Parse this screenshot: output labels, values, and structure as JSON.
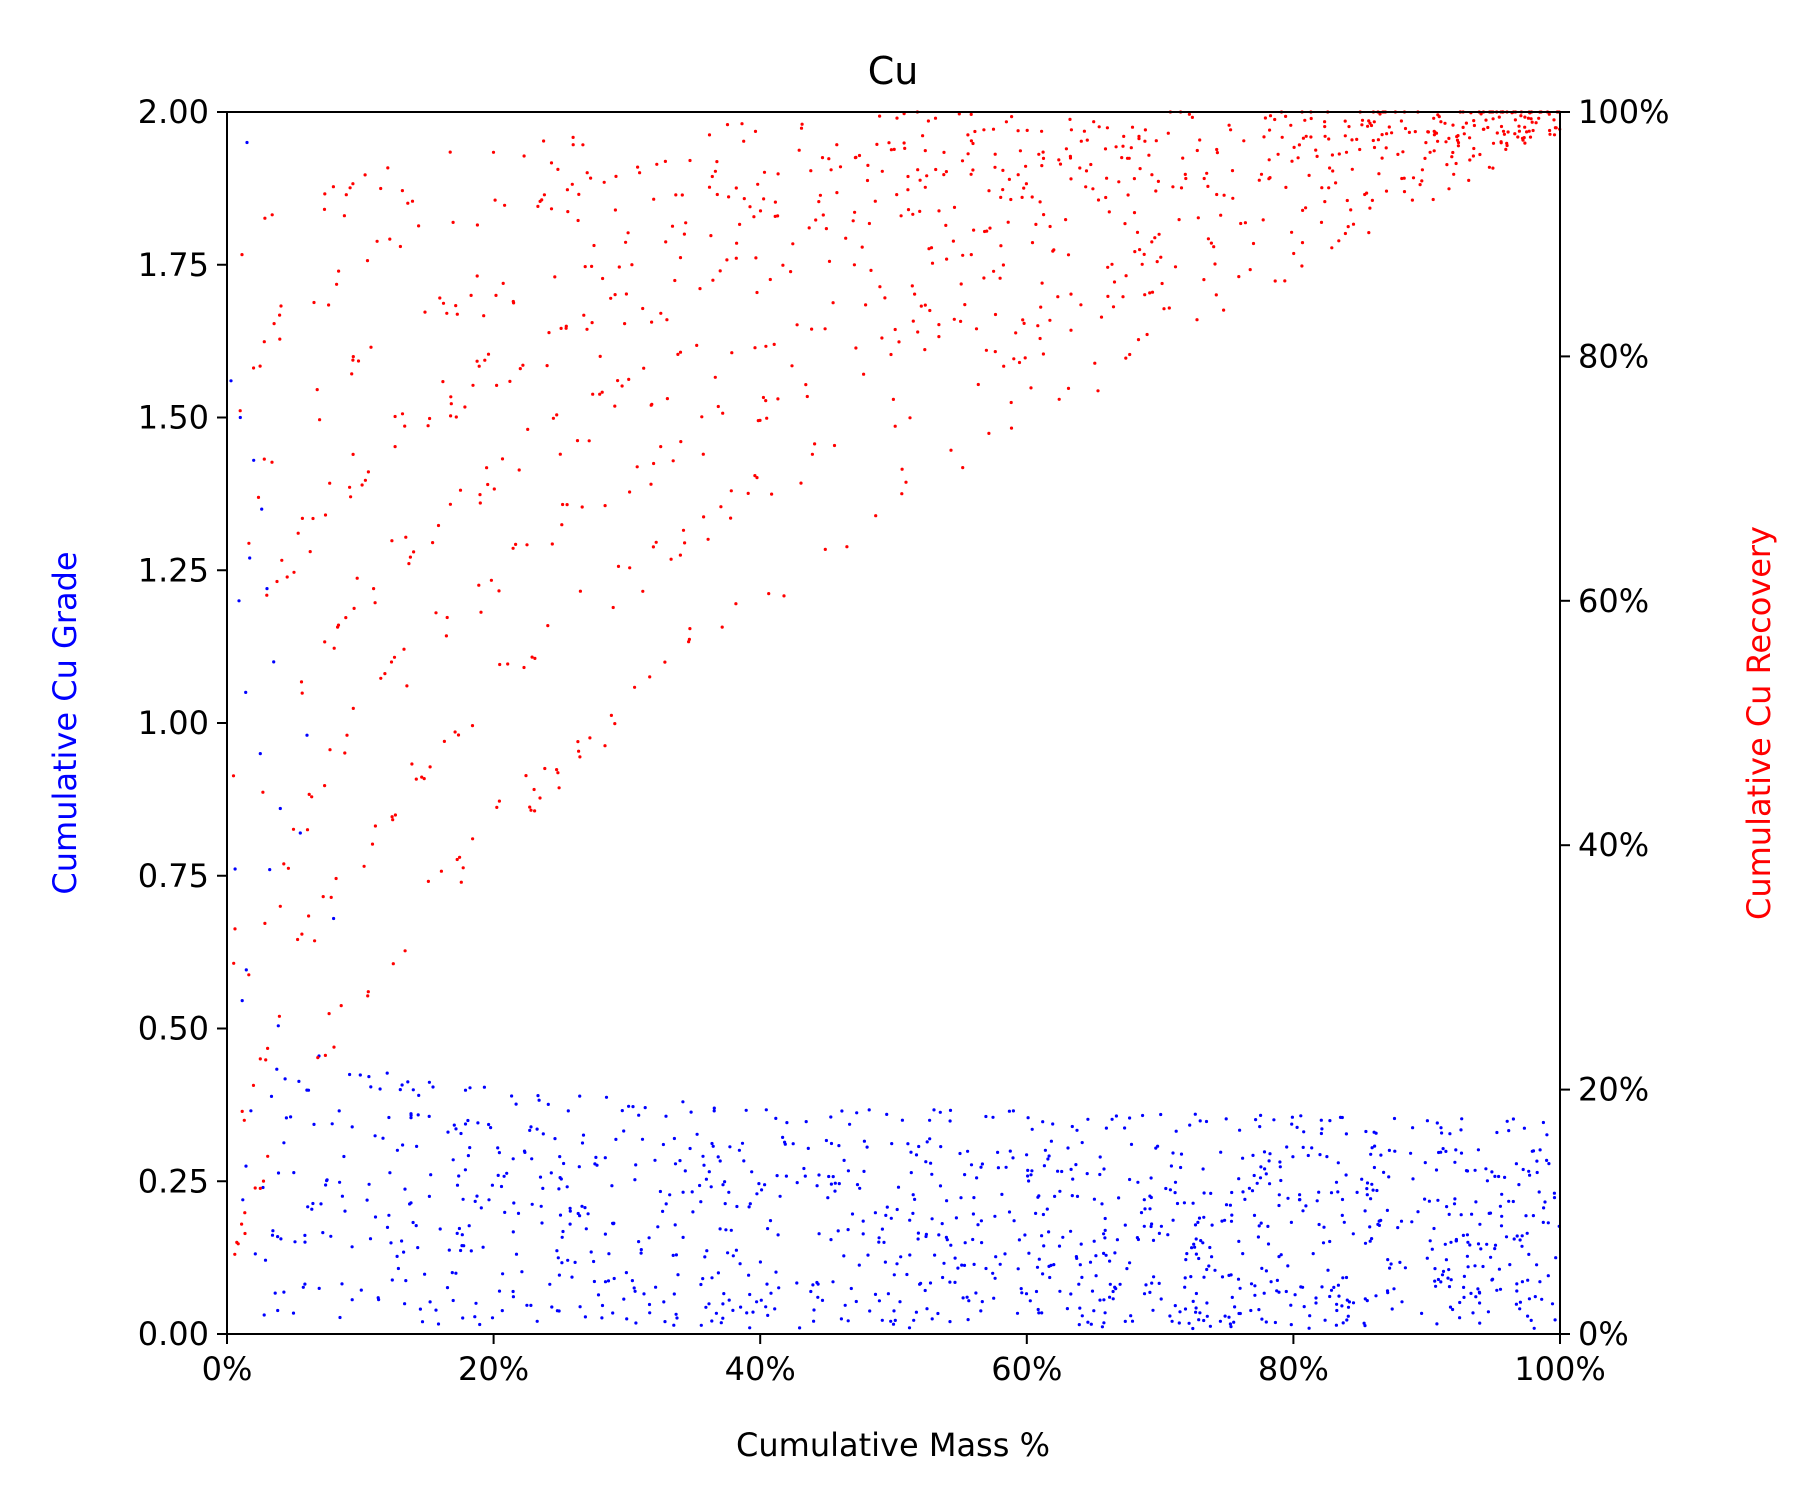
{
  "chart_data": {
    "type": "scatter",
    "title": "Cu",
    "xlabel": "Cumulative Mass %",
    "ylabel_left": "Cumulative Cu Grade",
    "ylabel_right": "Cumulative Cu Recovery",
    "xlim": [
      0,
      100
    ],
    "ylim_left": [
      0,
      2.0
    ],
    "ylim_right": [
      0,
      100
    ],
    "x_ticks": [
      "0%",
      "20%",
      "40%",
      "60%",
      "80%",
      "100%"
    ],
    "y_left_ticks": [
      "0.00",
      "0.25",
      "0.50",
      "0.75",
      "1.00",
      "1.25",
      "1.50",
      "1.75",
      "2.00"
    ],
    "y_right_ticks": [
      "0%",
      "20%",
      "40%",
      "60%",
      "80%",
      "100%"
    ],
    "grid": false,
    "series": [
      {
        "axis": "left",
        "color": "#0000ff",
        "curve_params": [
          0.02,
          0.045,
          0.07,
          0.1,
          0.13,
          0.16,
          0.19,
          0.22,
          0.25,
          0.29
        ],
        "points_per_curve": 115,
        "extra_points": [
          [
            1.5,
            1.95
          ],
          [
            0.3,
            1.56
          ],
          [
            1.0,
            1.5
          ],
          [
            2.0,
            1.43
          ],
          [
            2.6,
            1.35
          ],
          [
            1.7,
            1.27
          ],
          [
            3.0,
            1.22
          ],
          [
            0.9,
            1.2
          ],
          [
            3.5,
            1.1
          ],
          [
            1.4,
            1.05
          ],
          [
            6.0,
            0.98
          ],
          [
            2.5,
            0.95
          ],
          [
            4.0,
            0.86
          ],
          [
            5.5,
            0.82
          ],
          [
            3.2,
            0.76
          ],
          [
            8.0,
            0.68
          ]
        ]
      },
      {
        "axis": "right",
        "color": "#ff0000",
        "curve_params": [
          0.03,
          0.06,
          0.1,
          0.15,
          0.22,
          0.3,
          0.4,
          0.55
        ],
        "points_per_curve": 120,
        "extra_points": [
          [
            11,
            61
          ],
          [
            14,
            64
          ],
          [
            22,
            79
          ],
          [
            28,
            80
          ],
          [
            33,
            83
          ],
          [
            37,
            87
          ],
          [
            25,
            72
          ],
          [
            19,
            68
          ],
          [
            9,
            49
          ],
          [
            4,
            35
          ]
        ]
      }
    ]
  }
}
